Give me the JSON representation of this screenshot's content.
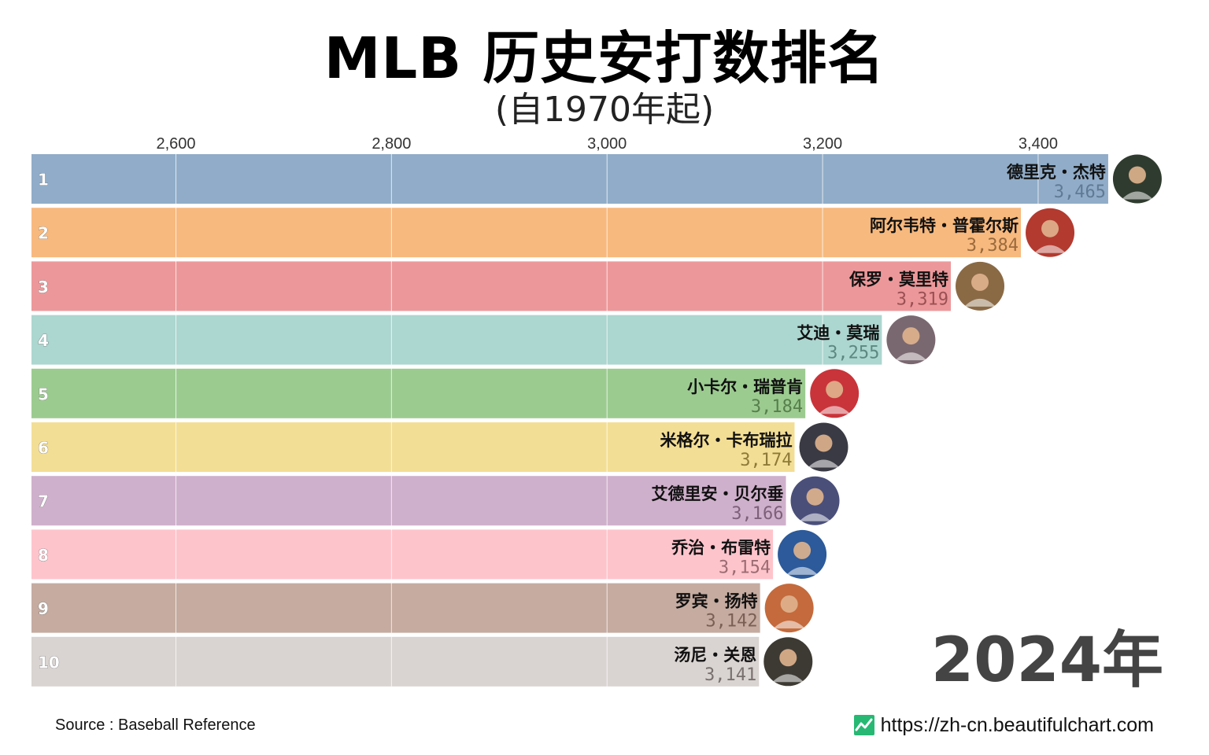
{
  "title": "MLB 历史安打数排名",
  "subtitle": "(自1970年起)",
  "year_label": "2024年",
  "source": "Source : Baseball Reference",
  "website": "https://zh-cn.beautifulchart.com",
  "website_icon": "line-chart-icon",
  "chart_data": {
    "type": "bar",
    "orientation": "horizontal",
    "title": "MLB 历史安打数排名",
    "subtitle": "(自1970年起)",
    "xlim": [
      2466,
      3476
    ],
    "x_ticks": [
      2600,
      2800,
      3000,
      3200,
      3400
    ],
    "x_tick_labels": [
      "2,600",
      "2,800",
      "3,000",
      "3,200",
      "3,400"
    ],
    "grid": true,
    "rows": [
      {
        "rank": "1",
        "name": "德里克・杰特",
        "value": 3465,
        "value_label": "3,465",
        "color": "#90acc8",
        "text_color": "#607a95",
        "avatar_color": "#2f3b2e"
      },
      {
        "rank": "2",
        "name": "阿尔韦特・普霍尔斯",
        "value": 3384,
        "value_label": "3,384",
        "color": "#f7b97e",
        "text_color": "#9a6a3c",
        "avatar_color": "#b33a2f"
      },
      {
        "rank": "3",
        "name": "保罗・莫里特",
        "value": 3319,
        "value_label": "3,319",
        "color": "#ec989a",
        "text_color": "#9a5052",
        "avatar_color": "#8a6a45"
      },
      {
        "rank": "4",
        "name": "艾迪・莫瑞",
        "value": 3255,
        "value_label": "3,255",
        "color": "#acd6d0",
        "text_color": "#5d8882",
        "avatar_color": "#7a6870"
      },
      {
        "rank": "5",
        "name": "小卡尔・瑞普肯",
        "value": 3184,
        "value_label": "3,184",
        "color": "#9ccb90",
        "text_color": "#567f4b",
        "avatar_color": "#c8343a"
      },
      {
        "rank": "6",
        "name": "米格尔・卡布瑞拉",
        "value": 3174,
        "value_label": "3,174",
        "color": "#f3de95",
        "text_color": "#8e7a36",
        "avatar_color": "#3a3a44"
      },
      {
        "rank": "7",
        "name": "艾德里安・贝尔垂",
        "value": 3166,
        "value_label": "3,166",
        "color": "#cfb0cc",
        "text_color": "#7d5f7a",
        "avatar_color": "#4a4f7a"
      },
      {
        "rank": "8",
        "name": "乔治・布雷特",
        "value": 3154,
        "value_label": "3,154",
        "color": "#fec4cc",
        "text_color": "#9c6b72",
        "avatar_color": "#2c5a9a"
      },
      {
        "rank": "9",
        "name": "罗宾・扬特",
        "value": 3142,
        "value_label": "3,142",
        "color": "#c5aba0",
        "text_color": "#7a5f55",
        "avatar_color": "#c46a3c"
      },
      {
        "rank": "10",
        "name": "汤尼・关恩",
        "value": 3141,
        "value_label": "3,141",
        "color": "#d9d3d1",
        "text_color": "#77706e",
        "avatar_color": "#3d3a33"
      }
    ]
  }
}
